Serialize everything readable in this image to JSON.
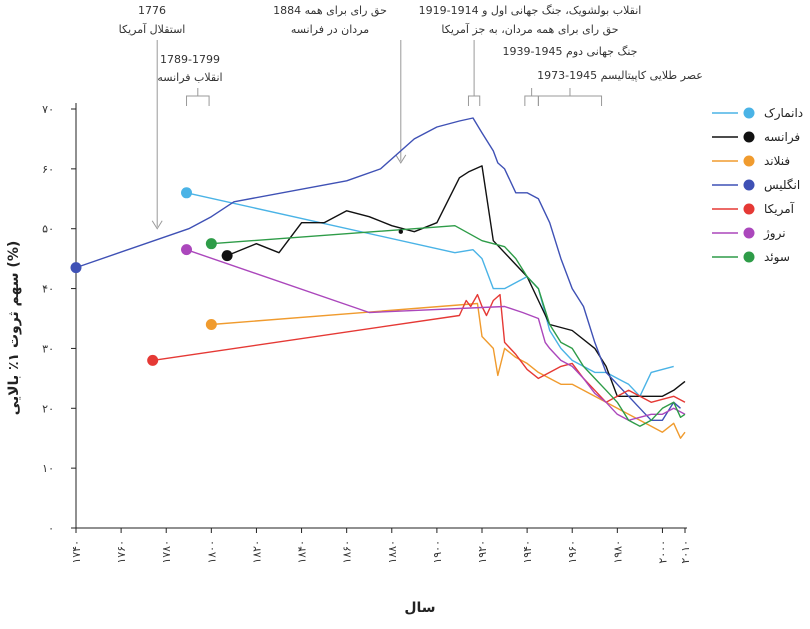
{
  "chart_data": {
    "type": "line",
    "xlabel": "سال",
    "ylabel": "سهم ثروت ۱٪ بالایی (%)",
    "xlim": [
      1740,
      2010
    ],
    "ylim": [
      0,
      70
    ],
    "x_ticks": [
      1740,
      1760,
      1780,
      1800,
      1820,
      1840,
      1860,
      1880,
      1900,
      1920,
      1940,
      1960,
      1980,
      2000,
      2010
    ],
    "x_tick_labels": [
      "۱۷۴۰",
      "۱۷۶۰",
      "۱۷۸۰",
      "۱۸۰۰",
      "۱۸۲۰",
      "۱۸۴۰",
      "۱۸۶۰",
      "۱۸۸۰",
      "۱۹۰۰",
      "۱۹۲۰",
      "۱۹۴۰",
      "۱۹۶۰",
      "۱۹۸۰",
      "۲۰۰۰",
      "۲۰۱۰"
    ],
    "y_ticks": [
      0,
      10,
      20,
      30,
      40,
      50,
      60,
      70
    ],
    "y_tick_labels": [
      "۰",
      "۱۰",
      "۲۰",
      "۳۰",
      "۴۰",
      "۵۰",
      "۶۰",
      "۷۰"
    ],
    "legend_position": "right",
    "series": [
      {
        "name": "دانمارک",
        "color": "#4ab3e6",
        "points": [
          [
            1789,
            56
          ],
          [
            1908,
            46
          ],
          [
            1916,
            46.5
          ],
          [
            1920,
            45
          ],
          [
            1925,
            40
          ],
          [
            1930,
            40
          ],
          [
            1935,
            41
          ],
          [
            1940,
            42
          ],
          [
            1945,
            40
          ],
          [
            1950,
            33
          ],
          [
            1955,
            30
          ],
          [
            1960,
            28
          ],
          [
            1965,
            27
          ],
          [
            1970,
            26
          ],
          [
            1975,
            26
          ],
          [
            1980,
            25
          ],
          [
            1985,
            24
          ],
          [
            1990,
            22
          ],
          [
            1995,
            26
          ],
          [
            2000,
            26.5
          ],
          [
            2005,
            27
          ]
        ]
      },
      {
        "name": "فرانسه",
        "color": "#111111",
        "points": [
          [
            1807,
            45.5
          ],
          [
            1820,
            47.5
          ],
          [
            1830,
            46
          ],
          [
            1840,
            51
          ],
          [
            1850,
            51
          ],
          [
            1860,
            53
          ],
          [
            1870,
            52
          ],
          [
            1880,
            50.5
          ],
          [
            1890,
            49.5
          ],
          [
            1900,
            51
          ],
          [
            1910,
            58.5
          ],
          [
            1914,
            59.5
          ],
          [
            1920,
            60.5
          ],
          [
            1925,
            48
          ],
          [
            1935,
            44
          ],
          [
            1940,
            42
          ],
          [
            1945,
            38
          ],
          [
            1950,
            34
          ],
          [
            1960,
            33
          ],
          [
            1970,
            30
          ],
          [
            1975,
            27
          ],
          [
            1980,
            22
          ],
          [
            1990,
            22
          ],
          [
            2000,
            22
          ],
          [
            2005,
            23
          ],
          [
            2010,
            24.5
          ]
        ]
      },
      {
        "name": "فنلاند",
        "color": "#f09b2e",
        "points": [
          [
            1800,
            34
          ],
          [
            1918,
            37.5
          ],
          [
            1920,
            32
          ],
          [
            1925,
            30
          ],
          [
            1927,
            25.5
          ],
          [
            1930,
            30
          ],
          [
            1935,
            28.5
          ],
          [
            1940,
            27.5
          ],
          [
            1945,
            26
          ],
          [
            1950,
            25
          ],
          [
            1955,
            24
          ],
          [
            1960,
            24
          ],
          [
            1965,
            23
          ],
          [
            1970,
            22
          ],
          [
            1975,
            21
          ],
          [
            1980,
            20
          ],
          [
            1985,
            19
          ],
          [
            1990,
            18
          ],
          [
            1995,
            17
          ],
          [
            2000,
            16
          ],
          [
            2005,
            17.5
          ],
          [
            2008,
            15
          ],
          [
            2010,
            16
          ]
        ]
      },
      {
        "name": "انگلیس",
        "color": "#3f51b5",
        "points": [
          [
            1740,
            43.5
          ],
          [
            1790,
            50
          ],
          [
            1800,
            52
          ],
          [
            1810,
            54.5
          ],
          [
            1860,
            58
          ],
          [
            1875,
            60
          ],
          [
            1890,
            65
          ],
          [
            1900,
            67
          ],
          [
            1910,
            68
          ],
          [
            1916,
            68.5
          ],
          [
            1920,
            66
          ],
          [
            1925,
            63
          ],
          [
            1927,
            61
          ],
          [
            1930,
            60
          ],
          [
            1935,
            56
          ],
          [
            1940,
            56
          ],
          [
            1945,
            55
          ],
          [
            1950,
            51
          ],
          [
            1955,
            45
          ],
          [
            1960,
            40
          ],
          [
            1965,
            37
          ],
          [
            1970,
            31
          ],
          [
            1975,
            26
          ],
          [
            1980,
            24
          ],
          [
            1985,
            22
          ],
          [
            1990,
            20
          ],
          [
            1995,
            18
          ],
          [
            2000,
            18
          ],
          [
            2005,
            21
          ],
          [
            2008,
            20
          ]
        ]
      },
      {
        "name": "آمریکا",
        "color": "#e53935",
        "points": [
          [
            1774,
            28
          ],
          [
            1910,
            35.5
          ],
          [
            1913,
            38
          ],
          [
            1915,
            37
          ],
          [
            1918,
            39
          ],
          [
            1920,
            37
          ],
          [
            1922,
            35.5
          ],
          [
            1925,
            38
          ],
          [
            1928,
            39
          ],
          [
            1930,
            31
          ],
          [
            1935,
            29
          ],
          [
            1940,
            26.5
          ],
          [
            1945,
            25
          ],
          [
            1950,
            26
          ],
          [
            1955,
            27
          ],
          [
            1960,
            27.5
          ],
          [
            1965,
            25
          ],
          [
            1970,
            23
          ],
          [
            1975,
            21
          ],
          [
            1980,
            22
          ],
          [
            1985,
            23
          ],
          [
            1990,
            22
          ],
          [
            1995,
            21
          ],
          [
            2000,
            21.5
          ],
          [
            2005,
            22
          ],
          [
            2010,
            21
          ]
        ]
      },
      {
        "name": "نروژ",
        "color": "#ab47bc",
        "points": [
          [
            1789,
            46.5
          ],
          [
            1870,
            36
          ],
          [
            1930,
            37
          ],
          [
            1938,
            36
          ],
          [
            1945,
            35
          ],
          [
            1948,
            31
          ],
          [
            1950,
            30
          ],
          [
            1955,
            28
          ],
          [
            1960,
            27
          ],
          [
            1965,
            25
          ],
          [
            1970,
            22.5
          ],
          [
            1975,
            21
          ],
          [
            1980,
            19
          ],
          [
            1985,
            18
          ],
          [
            1990,
            18.5
          ],
          [
            1995,
            19
          ],
          [
            2000,
            19
          ],
          [
            2005,
            20
          ],
          [
            2010,
            19
          ]
        ]
      },
      {
        "name": "سوئد",
        "color": "#2e9c48",
        "points": [
          [
            1800,
            47.5
          ],
          [
            1908,
            50.5
          ],
          [
            1920,
            48
          ],
          [
            1930,
            47
          ],
          [
            1935,
            45
          ],
          [
            1940,
            42
          ],
          [
            1945,
            40
          ],
          [
            1950,
            34
          ],
          [
            1955,
            31
          ],
          [
            1960,
            30
          ],
          [
            1965,
            27
          ],
          [
            1970,
            25
          ],
          [
            1975,
            23
          ],
          [
            1980,
            21
          ],
          [
            1985,
            18
          ],
          [
            1990,
            17
          ],
          [
            1995,
            18
          ],
          [
            2000,
            20
          ],
          [
            2005,
            21
          ],
          [
            2008,
            18.5
          ],
          [
            2010,
            19
          ]
        ]
      }
    ],
    "annotations": [
      {
        "line1": "1776",
        "line2": "استقلال آمریکا",
        "x": 1776,
        "type": "arrow",
        "y_end": 50
      },
      {
        "line1": "1789-1799",
        "line2": "انقلاب فرانسه",
        "x_range": [
          1789,
          1799
        ],
        "type": "bracket"
      },
      {
        "line1": "حق رای برای همه 1884",
        "line2": "مردان در فرانسه",
        "x": 1884,
        "type": "arrow",
        "y_end": 61
      },
      {
        "line1": "انقلاب بولشویک، جنگ جهانی اول و 1914-1919",
        "line2": "حق رای برای همه مردان، به جز آمریکا",
        "x_range": [
          1914,
          1919
        ],
        "type": "bracket"
      },
      {
        "line1": "جنگ جهانی دوم 1945-1939",
        "line2": "",
        "x_range": [
          1939,
          1945
        ],
        "type": "bracket"
      },
      {
        "line1": "عصر طلایی کاپیتالیسم 1945-1973",
        "line2": "",
        "x_range": [
          1945,
          1973
        ],
        "type": "bracket"
      }
    ]
  }
}
